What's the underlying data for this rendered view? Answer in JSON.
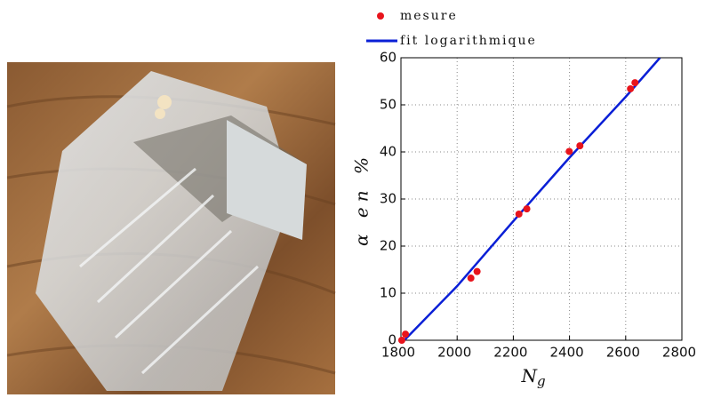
{
  "chart_data": {
    "type": "scatter",
    "x_label": "N",
    "x_label_subscript": "g",
    "y_label": "α en %",
    "xlim": [
      1800,
      2800
    ],
    "xticks": [
      1800,
      2000,
      2200,
      2400,
      2600,
      2800
    ],
    "ylim": [
      0,
      60
    ],
    "yticks": [
      0,
      10,
      20,
      30,
      40,
      50,
      60
    ],
    "grid": true,
    "series": [
      {
        "name": "mesure",
        "type": "scatter",
        "color": "#e8141c",
        "x": [
          1803,
          1816,
          2049,
          2071,
          2220,
          2248,
          2399,
          2437,
          2617,
          2633
        ],
        "values": [
          0,
          1.3,
          13.2,
          14.6,
          26.8,
          27.9,
          40.1,
          41.3,
          53.4,
          54.7
        ]
      },
      {
        "name": "fit logarithmique",
        "type": "line",
        "color": "#0a1fd6",
        "x": [
          1812,
          2000,
          2200,
          2400,
          2600,
          2722
        ],
        "values": [
          0,
          11.5,
          25.3,
          38.8,
          51.7,
          60
        ]
      }
    ]
  }
}
